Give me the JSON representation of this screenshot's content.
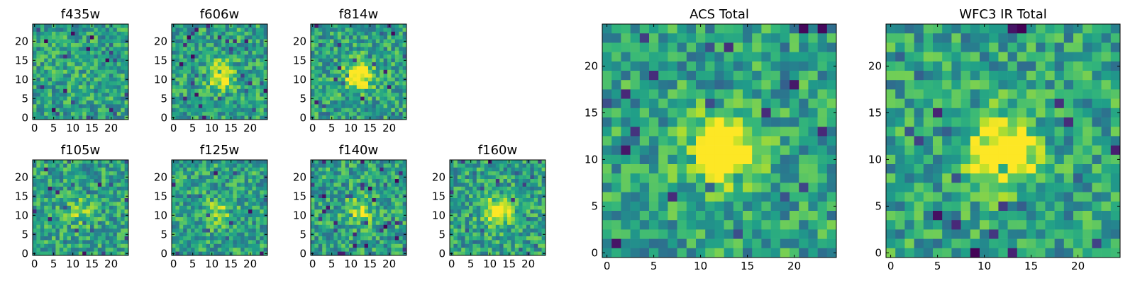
{
  "chart_data": [
    {
      "type": "heatmap",
      "title": "f435w",
      "grid_size": 25,
      "colormap": "viridis",
      "xticks": [
        0,
        5,
        10,
        15,
        20
      ],
      "yticks": [
        0,
        5,
        10,
        15,
        20
      ],
      "source_peak": 0.05,
      "noise_seed": 11
    },
    {
      "type": "heatmap",
      "title": "f606w",
      "grid_size": 25,
      "colormap": "viridis",
      "xticks": [
        0,
        5,
        10,
        15,
        20
      ],
      "yticks": [
        0,
        5,
        10,
        15,
        20
      ],
      "source_peak": 0.45,
      "noise_seed": 23
    },
    {
      "type": "heatmap",
      "title": "f814w",
      "grid_size": 25,
      "colormap": "viridis",
      "xticks": [
        0,
        5,
        10,
        15,
        20
      ],
      "yticks": [
        0,
        5,
        10,
        15,
        20
      ],
      "source_peak": 0.6,
      "noise_seed": 37
    },
    {
      "type": "heatmap",
      "title": "f105w",
      "grid_size": 25,
      "colormap": "viridis",
      "xticks": [
        0,
        5,
        10,
        15,
        20
      ],
      "yticks": [
        0,
        5,
        10,
        15,
        20
      ],
      "source_peak": 0.2,
      "noise_seed": 41
    },
    {
      "type": "heatmap",
      "title": "f125w",
      "grid_size": 25,
      "colormap": "viridis",
      "xticks": [
        0,
        5,
        10,
        15,
        20
      ],
      "yticks": [
        0,
        5,
        10,
        15,
        20
      ],
      "source_peak": 0.25,
      "noise_seed": 53
    },
    {
      "type": "heatmap",
      "title": "f140w",
      "grid_size": 25,
      "colormap": "viridis",
      "xticks": [
        0,
        5,
        10,
        15,
        20
      ],
      "yticks": [
        0,
        5,
        10,
        15,
        20
      ],
      "source_peak": 0.3,
      "noise_seed": 67
    },
    {
      "type": "heatmap",
      "title": "f160w",
      "grid_size": 25,
      "colormap": "viridis",
      "xticks": [
        0,
        5,
        10,
        15,
        20
      ],
      "yticks": [
        0,
        5,
        10,
        15,
        20
      ],
      "source_peak": 0.55,
      "noise_seed": 79
    },
    {
      "type": "heatmap",
      "title": "ACS Total",
      "grid_size": 25,
      "colormap": "viridis",
      "xticks": [
        0,
        5,
        10,
        15,
        20
      ],
      "yticks": [
        0,
        5,
        10,
        15,
        20
      ],
      "source_peak": 0.65,
      "noise_seed": 83
    },
    {
      "type": "heatmap",
      "title": "WFC3 IR Total",
      "grid_size": 25,
      "colormap": "viridis",
      "xticks": [
        0,
        5,
        10,
        15,
        20
      ],
      "yticks": [
        0,
        5,
        10,
        15,
        20
      ],
      "source_peak": 0.65,
      "noise_seed": 97
    }
  ]
}
